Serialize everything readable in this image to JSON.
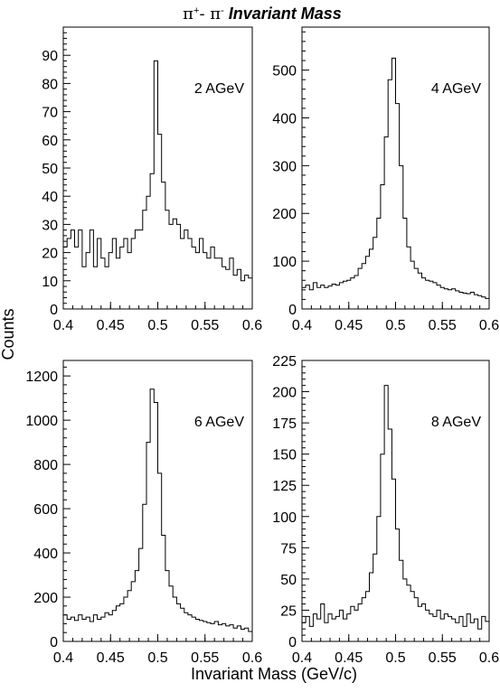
{
  "figure": {
    "title_pi_plus": "π",
    "title_sup_plus": "+",
    "title_dash": "- π",
    "title_sup_minus": "-",
    "title_italic": " Invariant Mass",
    "ylabel": "Counts",
    "xlabel": "Invariant Mass (GeV/c)"
  },
  "chart_data": [
    {
      "type": "histogram",
      "label": "2 AGeV",
      "xlim": [
        0.4,
        0.6
      ],
      "ylim": [
        0,
        100
      ],
      "xticks": [
        "0.4",
        "0.45",
        "0.5",
        "0.55",
        "0.6"
      ],
      "yticks": [
        "0",
        "10",
        "20",
        "30",
        "40",
        "50",
        "60",
        "70",
        "80",
        "90"
      ],
      "x": [
        0.4,
        0.404,
        0.408,
        0.412,
        0.416,
        0.42,
        0.424,
        0.428,
        0.432,
        0.436,
        0.44,
        0.444,
        0.448,
        0.452,
        0.456,
        0.46,
        0.464,
        0.468,
        0.472,
        0.476,
        0.48,
        0.484,
        0.488,
        0.492,
        0.496,
        0.5,
        0.504,
        0.508,
        0.512,
        0.516,
        0.52,
        0.524,
        0.528,
        0.532,
        0.536,
        0.54,
        0.544,
        0.548,
        0.552,
        0.556,
        0.56,
        0.564,
        0.568,
        0.572,
        0.576,
        0.58,
        0.584,
        0.588,
        0.592,
        0.596,
        0.6
      ],
      "y": [
        22,
        25,
        28,
        22,
        28,
        15,
        20,
        28,
        15,
        25,
        18,
        15,
        20,
        25,
        18,
        22,
        25,
        20,
        25,
        28,
        28,
        35,
        40,
        48,
        88,
        62,
        45,
        35,
        30,
        32,
        30,
        25,
        28,
        25,
        22,
        20,
        25,
        20,
        18,
        22,
        18,
        18,
        15,
        14,
        18,
        12,
        14,
        10,
        12,
        11
      ]
    },
    {
      "type": "histogram",
      "label": "4 AGeV",
      "xlim": [
        0.4,
        0.6
      ],
      "ylim": [
        0,
        590
      ],
      "xticks": [
        "0.4",
        "0.45",
        "0.5",
        "0.55",
        "0.6"
      ],
      "yticks": [
        "0",
        "100",
        "200",
        "300",
        "400",
        "500"
      ],
      "x": [
        0.4,
        0.404,
        0.408,
        0.412,
        0.416,
        0.42,
        0.424,
        0.428,
        0.432,
        0.436,
        0.44,
        0.444,
        0.448,
        0.452,
        0.456,
        0.46,
        0.464,
        0.468,
        0.472,
        0.476,
        0.48,
        0.484,
        0.488,
        0.492,
        0.496,
        0.5,
        0.504,
        0.508,
        0.512,
        0.516,
        0.52,
        0.524,
        0.528,
        0.532,
        0.536,
        0.54,
        0.544,
        0.548,
        0.552,
        0.556,
        0.56,
        0.564,
        0.568,
        0.572,
        0.576,
        0.58,
        0.584,
        0.588,
        0.592,
        0.596,
        0.6
      ],
      "y": [
        45,
        50,
        40,
        55,
        45,
        50,
        45,
        48,
        52,
        50,
        55,
        58,
        60,
        65,
        70,
        85,
        95,
        110,
        125,
        150,
        190,
        260,
        360,
        480,
        525,
        430,
        300,
        190,
        130,
        100,
        85,
        75,
        65,
        60,
        58,
        55,
        50,
        45,
        42,
        40,
        42,
        38,
        35,
        33,
        32,
        35,
        30,
        28,
        25,
        22
      ]
    },
    {
      "type": "histogram",
      "label": "6 AGeV",
      "xlim": [
        0.4,
        0.6
      ],
      "ylim": [
        0,
        1270
      ],
      "xticks": [
        "0.4",
        "0.45",
        "0.5",
        "0.55",
        "0.6"
      ],
      "yticks": [
        "0",
        "200",
        "400",
        "600",
        "800",
        "1000",
        "1200"
      ],
      "x": [
        0.4,
        0.404,
        0.408,
        0.412,
        0.416,
        0.42,
        0.424,
        0.428,
        0.432,
        0.436,
        0.44,
        0.444,
        0.448,
        0.452,
        0.456,
        0.46,
        0.464,
        0.468,
        0.472,
        0.476,
        0.48,
        0.484,
        0.488,
        0.492,
        0.496,
        0.5,
        0.504,
        0.508,
        0.512,
        0.516,
        0.52,
        0.524,
        0.528,
        0.532,
        0.536,
        0.54,
        0.544,
        0.548,
        0.552,
        0.556,
        0.56,
        0.564,
        0.568,
        0.572,
        0.576,
        0.58,
        0.584,
        0.588,
        0.592,
        0.596,
        0.6
      ],
      "y": [
        120,
        100,
        110,
        95,
        120,
        100,
        110,
        90,
        120,
        100,
        110,
        130,
        120,
        140,
        160,
        170,
        200,
        230,
        270,
        320,
        420,
        620,
        900,
        1140,
        1080,
        760,
        480,
        320,
        250,
        200,
        170,
        150,
        130,
        120,
        110,
        100,
        95,
        90,
        85,
        80,
        90,
        75,
        80,
        70,
        75,
        60,
        70,
        55,
        60,
        45
      ]
    },
    {
      "type": "histogram",
      "label": "8 AGeV",
      "xlim": [
        0.4,
        0.6
      ],
      "ylim": [
        0,
        225
      ],
      "xticks": [
        "0.4",
        "0.45",
        "0.5",
        "0.55",
        "0.6"
      ],
      "yticks": [
        "0",
        "25",
        "50",
        "75",
        "100",
        "125",
        "150",
        "175",
        "200",
        "225"
      ],
      "x": [
        0.4,
        0.404,
        0.408,
        0.412,
        0.416,
        0.42,
        0.424,
        0.428,
        0.432,
        0.436,
        0.44,
        0.444,
        0.448,
        0.452,
        0.456,
        0.46,
        0.464,
        0.468,
        0.472,
        0.476,
        0.48,
        0.484,
        0.488,
        0.492,
        0.496,
        0.5,
        0.504,
        0.508,
        0.512,
        0.516,
        0.52,
        0.524,
        0.528,
        0.532,
        0.536,
        0.54,
        0.544,
        0.548,
        0.552,
        0.556,
        0.56,
        0.564,
        0.568,
        0.572,
        0.576,
        0.58,
        0.584,
        0.588,
        0.592,
        0.596,
        0.6
      ],
      "y": [
        15,
        20,
        12,
        22,
        18,
        30,
        15,
        22,
        18,
        20,
        25,
        18,
        22,
        28,
        25,
        30,
        35,
        40,
        55,
        70,
        100,
        150,
        205,
        170,
        130,
        90,
        65,
        50,
        45,
        40,
        35,
        28,
        30,
        25,
        22,
        20,
        25,
        18,
        22,
        20,
        18,
        15,
        20,
        12,
        22,
        15,
        18,
        10,
        20,
        16
      ]
    }
  ]
}
